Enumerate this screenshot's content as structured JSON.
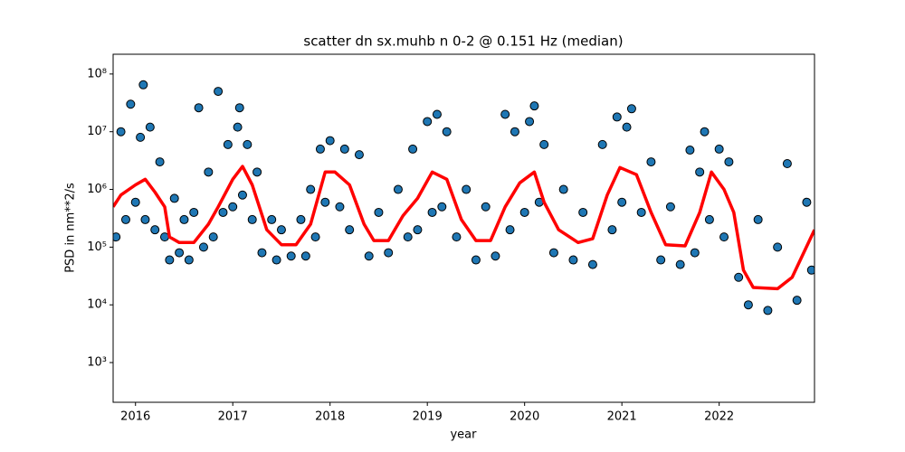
{
  "chart_data": {
    "type": "scatter",
    "title": "scatter dn sx.muhb n 0-2 @ 0.151 Hz (median)",
    "xlabel": "year",
    "ylabel": "PSD in nm**2/s",
    "xlim": [
      2015.77,
      2022.98
    ],
    "ylim": [
      205,
      220000000
    ],
    "yscale": "log",
    "xticks": [
      2016,
      2017,
      2018,
      2019,
      2020,
      2021,
      2022
    ],
    "yticks": [
      {
        "value": 1000,
        "label": "10³"
      },
      {
        "value": 10000,
        "label": "10⁴"
      },
      {
        "value": 100000,
        "label": "10⁵"
      },
      {
        "value": 1000000,
        "label": "10⁶"
      },
      {
        "value": 10000000,
        "label": "10⁷"
      },
      {
        "value": 100000000,
        "label": "10⁸"
      }
    ],
    "series": [
      {
        "type": "scatter",
        "color": "#1f77b4",
        "x": [
          2015.8,
          2015.85,
          2015.9,
          2015.95,
          2016.0,
          2016.05,
          2016.08,
          2016.1,
          2016.15,
          2016.2,
          2016.25,
          2016.3,
          2016.35,
          2016.4,
          2016.45,
          2016.5,
          2016.55,
          2016.6,
          2016.65,
          2016.7,
          2016.75,
          2016.8,
          2016.85,
          2016.9,
          2016.95,
          2017.0,
          2017.05,
          2017.07,
          2017.1,
          2017.15,
          2017.2,
          2017.25,
          2017.3,
          2017.4,
          2017.45,
          2017.5,
          2017.6,
          2017.7,
          2017.75,
          2017.8,
          2017.85,
          2017.9,
          2017.95,
          2018.0,
          2018.1,
          2018.15,
          2018.2,
          2018.3,
          2018.4,
          2018.5,
          2018.6,
          2018.7,
          2018.8,
          2018.85,
          2018.9,
          2019.0,
          2019.05,
          2019.1,
          2019.15,
          2019.2,
          2019.3,
          2019.4,
          2019.5,
          2019.6,
          2019.7,
          2019.8,
          2019.85,
          2019.9,
          2020.0,
          2020.05,
          2020.1,
          2020.15,
          2020.2,
          2020.3,
          2020.4,
          2020.5,
          2020.6,
          2020.7,
          2020.8,
          2020.9,
          2020.95,
          2021.0,
          2021.05,
          2021.1,
          2021.2,
          2021.3,
          2021.4,
          2021.5,
          2021.6,
          2021.7,
          2021.75,
          2021.8,
          2021.85,
          2021.9,
          2022.0,
          2022.05,
          2022.1,
          2022.2,
          2022.3,
          2022.4,
          2022.5,
          2022.6,
          2022.7,
          2022.8,
          2022.9,
          2022.95
        ],
        "values": [
          150000,
          10000000,
          300000,
          30000000,
          600000,
          8000000,
          65000000,
          300000,
          12000000,
          200000,
          3000000,
          150000,
          60000,
          700000,
          80000,
          300000,
          60000,
          400000,
          26000000,
          100000,
          2000000,
          150000,
          50000000,
          400000,
          6000000,
          500000,
          12000000,
          26000000,
          800000,
          6000000,
          300000,
          2000000,
          80000,
          300000,
          60000,
          200000,
          70000,
          300000,
          70000,
          1000000,
          150000,
          5000000,
          600000,
          7000000,
          500000,
          5000000,
          200000,
          4000000,
          70000,
          400000,
          80000,
          1000000,
          150000,
          5000000,
          200000,
          15000000,
          400000,
          20000000,
          500000,
          10000000,
          150000,
          1000000,
          60000,
          500000,
          70000,
          20000000,
          200000,
          10000000,
          400000,
          15000000,
          28000000,
          600000,
          6000000,
          80000,
          1000000,
          60000,
          400000,
          50000,
          6000000,
          200000,
          18000000,
          600000,
          12000000,
          25000000,
          400000,
          3000000,
          60000,
          500000,
          50000,
          4800000,
          80000,
          2000000,
          10000000,
          300000,
          5000000,
          150000,
          3000000,
          30000,
          10000,
          300000,
          8000,
          100000,
          2800000,
          12000,
          600000,
          40000
        ]
      },
      {
        "type": "line",
        "color": "#ff0000",
        "x": [
          2015.77,
          2015.85,
          2016.0,
          2016.1,
          2016.2,
          2016.3,
          2016.35,
          2016.45,
          2016.6,
          2016.75,
          2016.85,
          2017.0,
          2017.1,
          2017.2,
          2017.35,
          2017.5,
          2017.65,
          2017.8,
          2017.95,
          2018.05,
          2018.2,
          2018.35,
          2018.45,
          2018.6,
          2018.75,
          2018.9,
          2019.05,
          2019.2,
          2019.35,
          2019.5,
          2019.65,
          2019.8,
          2019.95,
          2020.1,
          2020.2,
          2020.35,
          2020.55,
          2020.7,
          2020.85,
          2020.98,
          2021.15,
          2021.3,
          2021.45,
          2021.65,
          2021.8,
          2021.92,
          2022.05,
          2022.15,
          2022.25,
          2022.35,
          2022.6,
          2022.75,
          2022.98
        ],
        "values": [
          500000,
          800000,
          1200000,
          1500000,
          900000,
          500000,
          150000,
          120000,
          120000,
          250000,
          500000,
          1500000,
          2500000,
          1200000,
          200000,
          110000,
          110000,
          250000,
          2000000,
          2000000,
          1200000,
          250000,
          130000,
          130000,
          350000,
          700000,
          2000000,
          1500000,
          300000,
          130000,
          130000,
          500000,
          1300000,
          2000000,
          600000,
          200000,
          120000,
          140000,
          800000,
          2400000,
          1800000,
          400000,
          110000,
          105000,
          400000,
          2000000,
          1000000,
          400000,
          40000,
          20000,
          19000,
          30000,
          200000
        ]
      }
    ]
  }
}
